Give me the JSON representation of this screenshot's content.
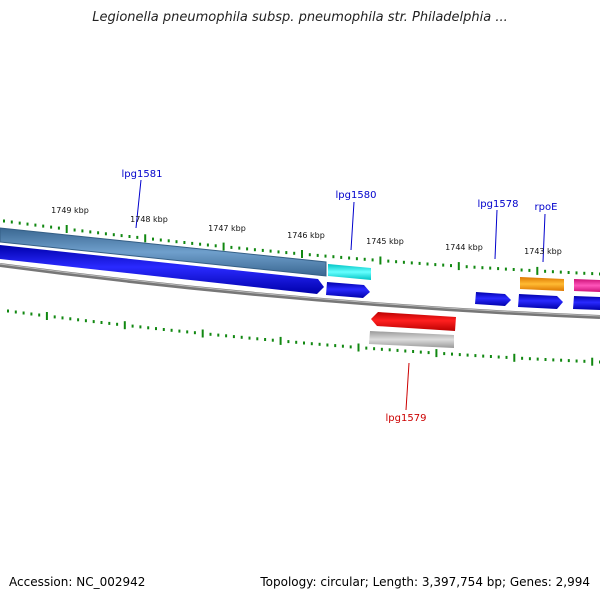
{
  "title": "Legionella pneumophila subsp. pneumophila str. Philadelphia ...",
  "footer": {
    "accession": "Accession: NC_002942",
    "stats": "Topology: circular; Length: 3,397,754 bp; Genes: 2,994"
  },
  "ticks": [
    {
      "label": "1749 kbp"
    },
    {
      "label": "1748 kbp"
    },
    {
      "label": "1747 kbp"
    },
    {
      "label": "1746 kbp"
    },
    {
      "label": "1745 kbp"
    },
    {
      "label": "1744 kbp"
    },
    {
      "label": "1743 kbp"
    }
  ],
  "gene_labels": [
    {
      "name": "lpg1581",
      "color": "#0000cc"
    },
    {
      "name": "lpg1580",
      "color": "#0000cc"
    },
    {
      "name": "lpg1578",
      "color": "#0000cc"
    },
    {
      "name": "rpoE",
      "color": "#0000cc"
    },
    {
      "name": "lpg1579",
      "color": "#cc0000"
    }
  ],
  "colors": {
    "forward_gene": "#0000ee",
    "reverse_gene": "#ee0000",
    "tick": "#118811",
    "backbone": "#777777",
    "cog_steelblue": "#4a7fb0",
    "cog_cyan": "#00e0e0",
    "cog_orange": "#ff9900",
    "cog_magenta": "#ff2299",
    "cog_gray": "#b0b0b0"
  }
}
